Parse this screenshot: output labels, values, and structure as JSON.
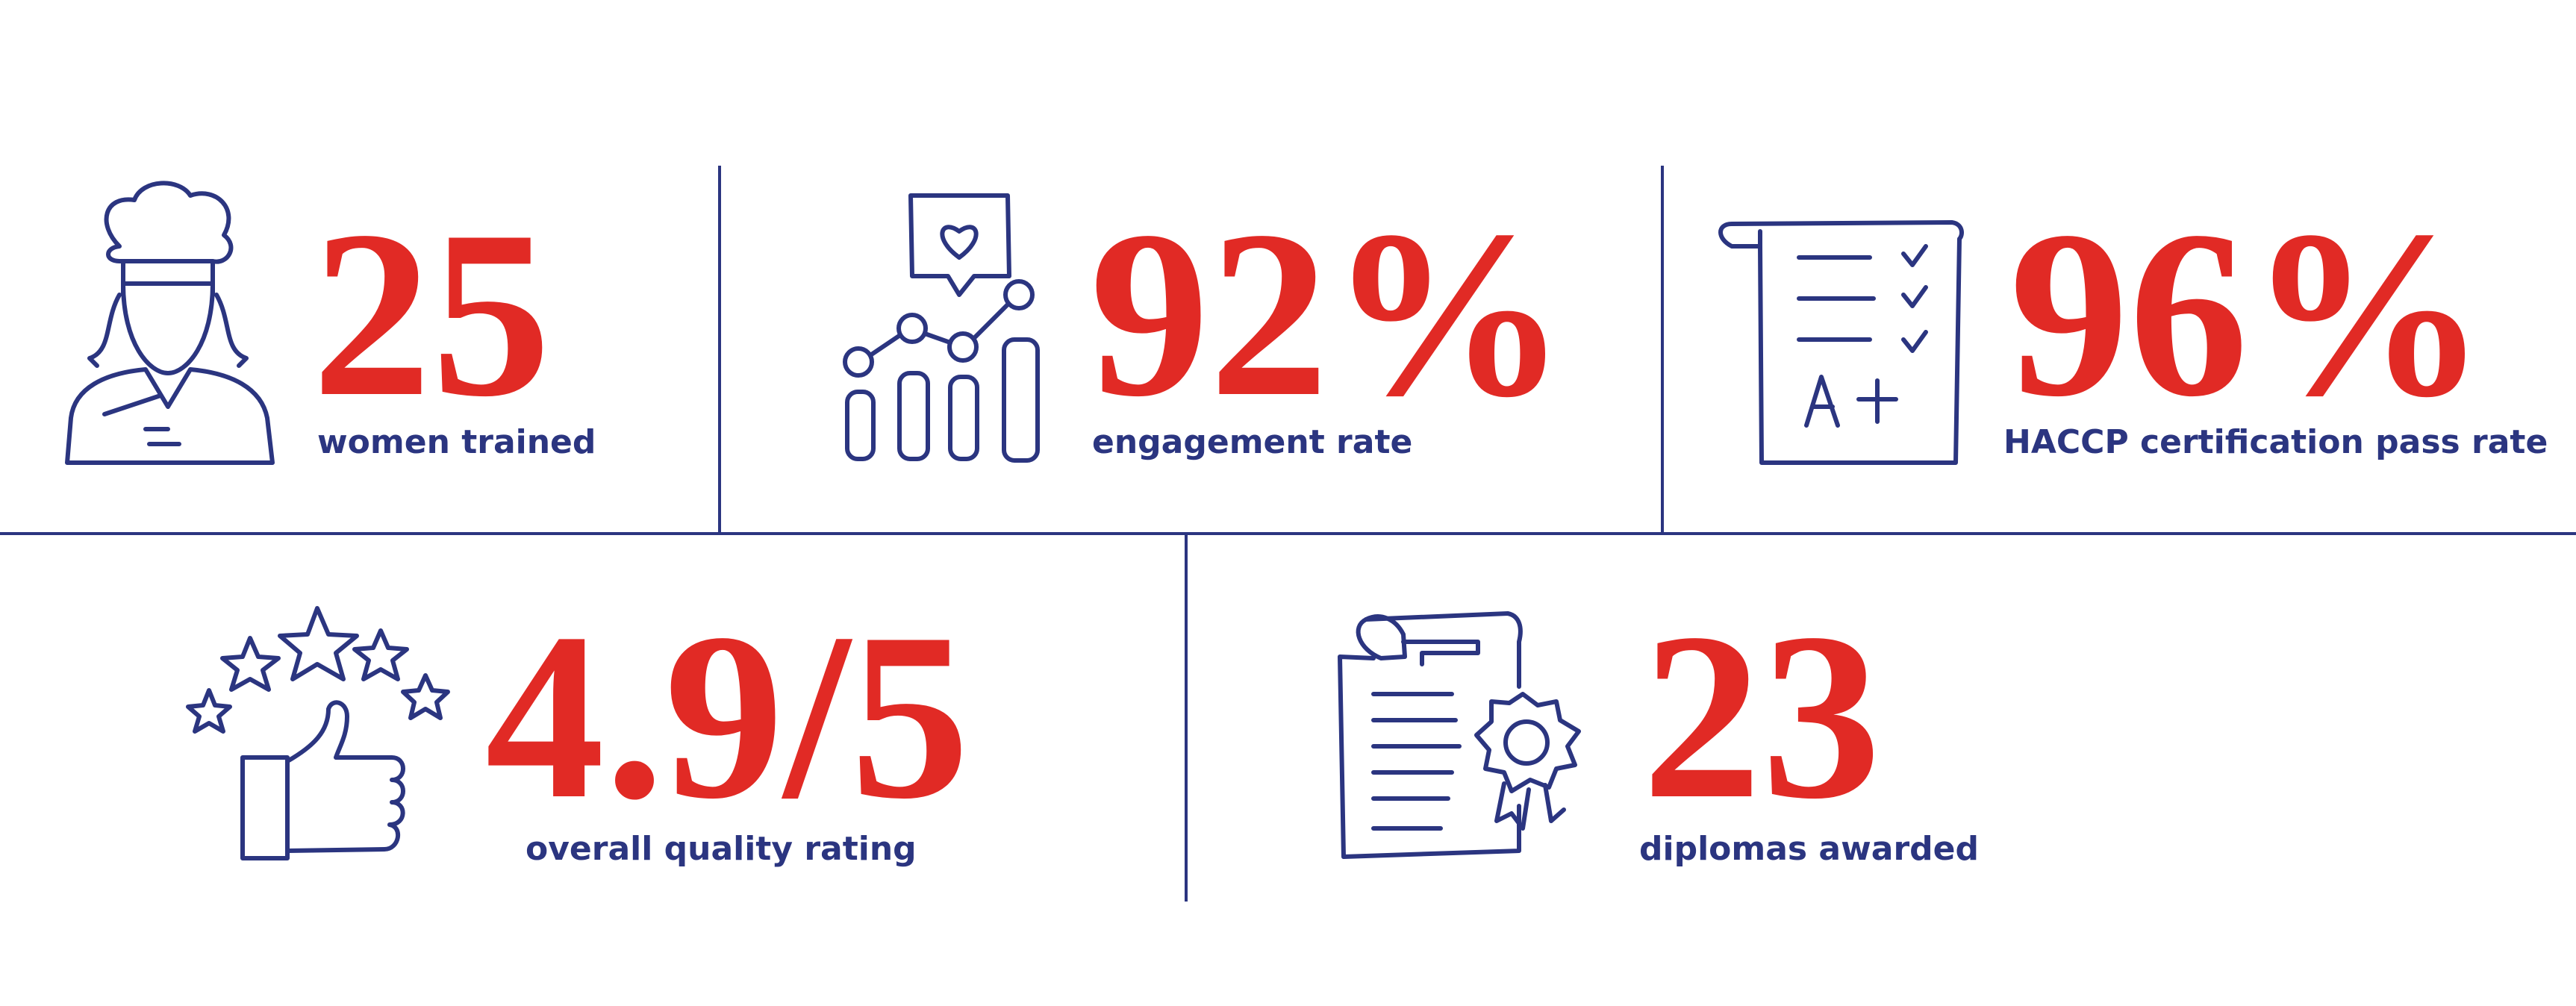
{
  "stats": [
    {
      "value": "25",
      "label": "women trained"
    },
    {
      "value": "92%",
      "label": "engagement rate"
    },
    {
      "value": "96%",
      "label": "HACCP certification pass rate"
    },
    {
      "value": "4.9/5",
      "label": "overall quality rating"
    },
    {
      "value": "23",
      "label": "diplomas awarded"
    }
  ]
}
